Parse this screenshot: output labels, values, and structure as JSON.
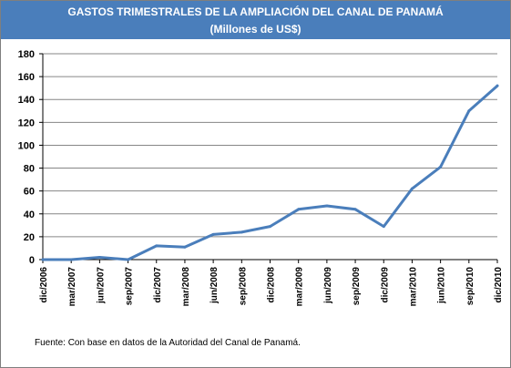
{
  "title": "GASTOS TRIMESTRALES DE LA AMPLIACIÓN DEL CANAL DE PANAMÁ",
  "subtitle": "(Millones de US$)",
  "source_note": "Fuente: Con base en datos de la Autoridad del Canal de Panamá.",
  "colors": {
    "header_band": "#4a7ebb",
    "line": "#4a7ebb",
    "grid": "#868686"
  },
  "chart_data": {
    "type": "line",
    "title": "GASTOS TRIMESTRALES DE LA AMPLIACIÓN DEL CANAL DE PANAMÁ",
    "subtitle": "(Millones de US$)",
    "xlabel": "",
    "ylabel": "",
    "categories": [
      "dic/2006",
      "mar/2007",
      "jun/2007",
      "sep/2007",
      "dic/2007",
      "mar/2008",
      "jun/2008",
      "sep/2008",
      "dic/2008",
      "mar/2009",
      "jun/2009",
      "sep/2009",
      "dic/2009",
      "mar/2010",
      "jun/2010",
      "sep/2010",
      "dic/2010"
    ],
    "values": [
      0,
      0,
      2,
      0,
      12,
      11,
      22,
      24,
      29,
      44,
      47,
      44,
      29,
      62,
      81,
      130,
      152
    ],
    "ylim": [
      0,
      180
    ],
    "yticks": [
      0,
      20,
      40,
      60,
      80,
      100,
      120,
      140,
      160,
      180
    ],
    "grid": true,
    "legend": "none"
  }
}
